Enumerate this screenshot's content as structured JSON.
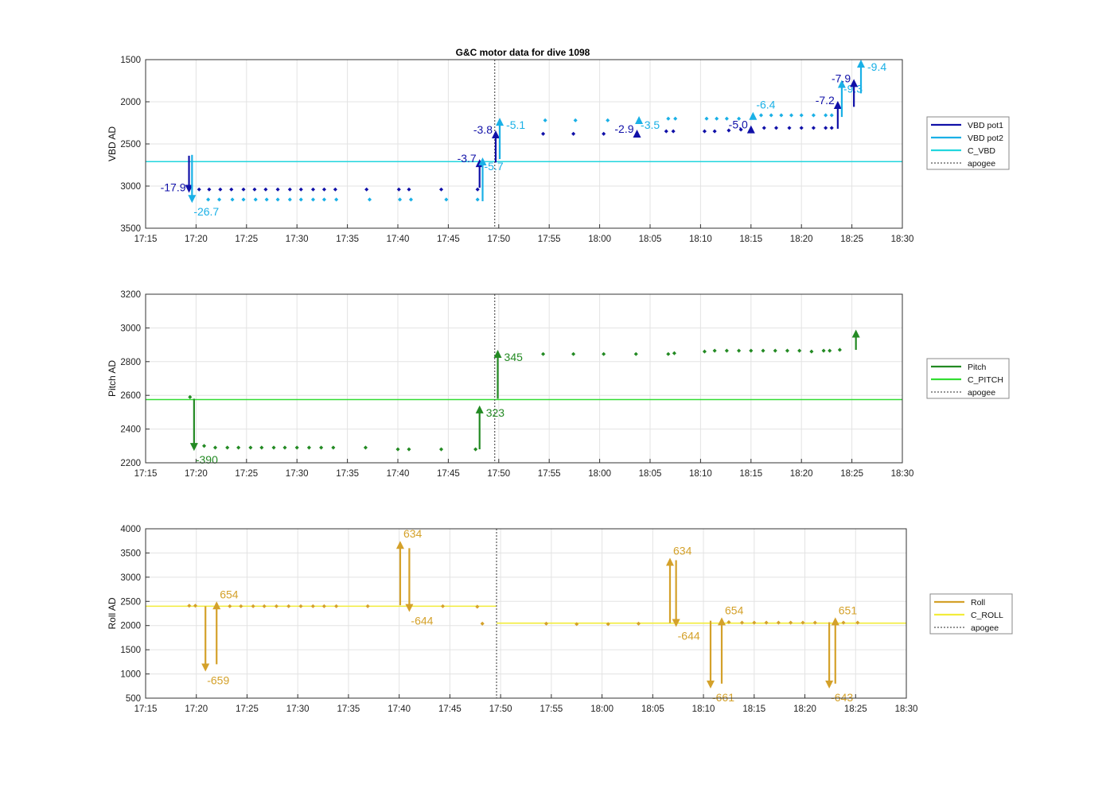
{
  "title": "G&C motor data for dive 1098",
  "colors": {
    "vbd_pot1": "#1010a8",
    "vbd_pot2": "#1ab0e6",
    "c_vbd": "#22d6de",
    "pitch": "#238a23",
    "c_pitch": "#33dd33",
    "roll": "#d4a12a",
    "c_roll": "#f2ec3a",
    "apogee": "#555555",
    "grid": "#e3e3e3"
  },
  "chart_data": [
    {
      "type": "scatter",
      "id": "vbd",
      "ylabel": "VBD AD",
      "xlim": [
        "17:15",
        "18:30"
      ],
      "ylim": [
        1500,
        3500
      ],
      "yreverse": true,
      "yticks": [
        1500,
        2000,
        2500,
        3000,
        3500
      ],
      "xticks": [
        "17:15",
        "17:20",
        "17:25",
        "17:30",
        "17:35",
        "17:40",
        "17:45",
        "17:50",
        "17:55",
        "18:00",
        "18:05",
        "18:10",
        "18:15",
        "18:20",
        "18:25",
        "18:30"
      ],
      "grid": true,
      "legend_position": "right",
      "legend": [
        "VBD pot1",
        "VBD pot2",
        "C_VBD",
        "apogee"
      ],
      "apogee": "17:49.6",
      "ref_lines": [
        {
          "name": "C_VBD",
          "y": 2710,
          "x": [
            "17:15",
            "18:30"
          ]
        }
      ],
      "series": [
        {
          "name": "VBD pot1",
          "x": [
            "17:20.3",
            "17:21.3",
            "17:22.4",
            "17:23.5",
            "17:24.7",
            "17:25.8",
            "17:26.9",
            "17:28.1",
            "17:29.3",
            "17:30.4",
            "17:31.6",
            "17:32.7",
            "17:33.8",
            "17:36.9",
            "17:40.1",
            "17:41.1",
            "17:44.3",
            "17:47.9",
            "17:54.4",
            "17:57.4",
            "18:00.4",
            "18:06.6",
            "18:07.3",
            "18:10.4",
            "18:11.4",
            "18:12.8",
            "18:14.0",
            "18:16.3",
            "18:17.5",
            "18:18.8",
            "18:20.0",
            "18:21.2",
            "18:22.4",
            "18:23.0"
          ],
          "y": [
            3040,
            3040,
            3040,
            3040,
            3040,
            3040,
            3040,
            3040,
            3040,
            3040,
            3040,
            3040,
            3040,
            3040,
            3040,
            3040,
            3040,
            3040,
            2380,
            2380,
            2380,
            2350,
            2350,
            2350,
            2350,
            2340,
            2330,
            2310,
            2310,
            2310,
            2310,
            2310,
            2310,
            2310
          ]
        },
        {
          "name": "VBD pot2",
          "x": [
            "17:21.2",
            "17:22.3",
            "17:23.6",
            "17:24.7",
            "17:25.9",
            "17:27.0",
            "17:28.1",
            "17:29.3",
            "17:30.4",
            "17:31.6",
            "17:32.7",
            "17:33.9",
            "17:37.2",
            "17:40.2",
            "17:41.3",
            "17:44.8",
            "17:47.9",
            "17:54.6",
            "17:57.6",
            "18:00.8",
            "18:06.8",
            "18:07.5",
            "18:10.6",
            "18:11.6",
            "18:12.6",
            "18:13.8",
            "18:16.0",
            "18:17.0",
            "18:18.0",
            "18:19.0",
            "18:20.0",
            "18:21.2",
            "18:22.4",
            "18:23.0"
          ],
          "y": [
            3160,
            3160,
            3160,
            3160,
            3160,
            3160,
            3160,
            3160,
            3160,
            3160,
            3160,
            3160,
            3160,
            3160,
            3160,
            3160,
            3160,
            2220,
            2220,
            2220,
            2200,
            2200,
            2200,
            2200,
            2200,
            2200,
            2160,
            2160,
            2160,
            2160,
            2160,
            2160,
            2160,
            2160
          ]
        }
      ],
      "moves": [
        {
          "series": "VBD pot1",
          "x": "17:19.3",
          "y0": 2640,
          "y1": 3080,
          "label": "-17.9",
          "label_pos": "left"
        },
        {
          "series": "VBD pot2",
          "x": "17:19.6",
          "y0": 2630,
          "y1": 3200,
          "label": "-26.7",
          "label_pos": "below-right"
        },
        {
          "series": "VBD pot1",
          "x": "17:48.1",
          "y0": 3020,
          "y1": 2680,
          "label": "-3.7",
          "label_pos": "left"
        },
        {
          "series": "VBD pot2",
          "x": "17:48.4",
          "y0": 3180,
          "y1": 2660,
          "label": "-5.7",
          "label_pos": "below-right"
        },
        {
          "series": "VBD pot1",
          "x": "17:49.7",
          "y0": 2720,
          "y1": 2340,
          "label": "-3.8",
          "label_pos": "left"
        },
        {
          "series": "VBD pot2",
          "x": "17:50.1",
          "y0": 2680,
          "y1": 2190,
          "label": "-5.1",
          "label_pos": "right"
        },
        {
          "series": "VBD pot1",
          "x": "18:03.7",
          "y0": 2400,
          "y1": 2330,
          "label": "-2.9",
          "label_pos": "left"
        },
        {
          "series": "VBD pot2",
          "x": "18:03.9",
          "y0": 2230,
          "y1": 2170,
          "label": "-3.5",
          "label_pos": "below-right"
        },
        {
          "series": "VBD pot1",
          "x": "18:15.0",
          "y0": 2350,
          "y1": 2280,
          "label": "-5.0",
          "label_pos": "left"
        },
        {
          "series": "VBD pot2",
          "x": "18:15.2",
          "y0": 2180,
          "y1": 2120,
          "label": "-6.4",
          "label_pos": "above-right"
        },
        {
          "series": "VBD pot1",
          "x": "18:23.6",
          "y0": 2320,
          "y1": 1990,
          "label": "-7.2",
          "label_pos": "left"
        },
        {
          "series": "VBD pot2",
          "x": "18:24.0",
          "y0": 2180,
          "y1": 1740,
          "label": "-9.3",
          "label_pos": "below-right"
        },
        {
          "series": "VBD pot1",
          "x": "18:25.2",
          "y0": 2060,
          "y1": 1730,
          "label": "-7.9",
          "label_pos": "left"
        },
        {
          "series": "VBD pot2",
          "x": "18:25.9",
          "y0": 1900,
          "y1": 1500,
          "label": "-9.4",
          "label_pos": "right"
        }
      ]
    },
    {
      "type": "scatter",
      "id": "pitch",
      "ylabel": "Pitch AD",
      "xlim": [
        "17:15",
        "18:30"
      ],
      "ylim": [
        2200,
        3200
      ],
      "yreverse": false,
      "yticks": [
        2200,
        2400,
        2600,
        2800,
        3000,
        3200
      ],
      "xticks": [
        "17:15",
        "17:20",
        "17:25",
        "17:30",
        "17:35",
        "17:40",
        "17:45",
        "17:50",
        "17:55",
        "18:00",
        "18:05",
        "18:10",
        "18:15",
        "18:20",
        "18:25",
        "18:30"
      ],
      "grid": true,
      "legend_position": "right",
      "legend": [
        "Pitch",
        "C_PITCH",
        "apogee"
      ],
      "apogee": "17:49.6",
      "ref_lines": [
        {
          "name": "C_PITCH",
          "y": 2575,
          "x": [
            "17:15",
            "18:30"
          ]
        }
      ],
      "series": [
        {
          "name": "Pitch",
          "x": [
            "17:19.4",
            "17:20.8",
            "17:21.9",
            "17:23.1",
            "17:24.2",
            "17:25.4",
            "17:26.5",
            "17:27.7",
            "17:28.8",
            "17:30.0",
            "17:31.2",
            "17:32.4",
            "17:33.6",
            "17:36.8",
            "17:40.0",
            "17:41.1",
            "17:44.3",
            "17:47.7",
            "17:54.4",
            "17:57.4",
            "18:00.4",
            "18:03.6",
            "18:06.8",
            "18:07.4",
            "18:10.4",
            "18:11.4",
            "18:12.6",
            "18:13.8",
            "18:15.0",
            "18:16.2",
            "18:17.4",
            "18:18.6",
            "18:19.8",
            "18:21.0",
            "18:22.2",
            "18:22.8",
            "18:23.8"
          ],
          "y": [
            2590,
            2300,
            2290,
            2290,
            2290,
            2290,
            2290,
            2290,
            2290,
            2290,
            2290,
            2290,
            2290,
            2290,
            2280,
            2280,
            2280,
            2280,
            2845,
            2845,
            2845,
            2845,
            2845,
            2850,
            2860,
            2865,
            2865,
            2865,
            2865,
            2865,
            2865,
            2865,
            2865,
            2860,
            2865,
            2865,
            2870
          ]
        }
      ],
      "moves": [
        {
          "series": "Pitch",
          "x": "17:19.8",
          "y0": 2580,
          "y1": 2270,
          "label": "-390",
          "label_pos": "below-right"
        },
        {
          "series": "Pitch",
          "x": "17:48.1",
          "y0": 2280,
          "y1": 2540,
          "label": "323",
          "label_pos": "right"
        },
        {
          "series": "Pitch",
          "x": "17:49.9",
          "y0": 2580,
          "y1": 2870,
          "label": "345",
          "label_pos": "right"
        },
        {
          "series": "Pitch",
          "x": "18:25.4",
          "y0": 2870,
          "y1": 2990,
          "label": "",
          "label_pos": "right"
        }
      ]
    },
    {
      "type": "scatter",
      "id": "roll",
      "ylabel": "Roll AD",
      "xlim": [
        "17:15",
        "18:30"
      ],
      "ylim": [
        500,
        4000
      ],
      "yreverse": false,
      "yticks": [
        500,
        1000,
        1500,
        2000,
        2500,
        3000,
        3500,
        4000
      ],
      "xticks": [
        "17:15",
        "17:20",
        "17:25",
        "17:30",
        "17:35",
        "17:40",
        "17:45",
        "17:50",
        "17:55",
        "18:00",
        "18:05",
        "18:10",
        "18:15",
        "18:20",
        "18:25",
        "18:30"
      ],
      "grid": true,
      "legend_position": "right",
      "legend": [
        "Roll",
        "C_ROLL",
        "apogee"
      ],
      "apogee": "17:49.6",
      "ref_lines": [
        {
          "name": "C_ROLL",
          "y": 2400,
          "x": [
            "17:15",
            "17:49.6"
          ]
        },
        {
          "name": "C_ROLL",
          "y": 2050,
          "x": [
            "17:49.6",
            "18:30"
          ]
        }
      ],
      "series": [
        {
          "name": "Roll",
          "x": [
            "17:19.3",
            "17:19.9",
            "17:23.3",
            "17:24.4",
            "17:25.6",
            "17:26.7",
            "17:27.9",
            "17:29.1",
            "17:30.3",
            "17:31.5",
            "17:32.6",
            "17:33.8",
            "17:36.9",
            "17:44.3",
            "17:47.7",
            "17:48.2",
            "17:54.5",
            "17:57.5",
            "18:00.6",
            "18:03.6",
            "18:12.5",
            "18:13.8",
            "18:15.0",
            "18:16.2",
            "18:17.4",
            "18:18.6",
            "18:19.8",
            "18:21.0",
            "18:23.8",
            "18:25.2"
          ],
          "y": [
            2410,
            2410,
            2400,
            2400,
            2400,
            2400,
            2400,
            2400,
            2400,
            2400,
            2400,
            2400,
            2400,
            2400,
            2390,
            2040,
            2040,
            2030,
            2030,
            2040,
            2070,
            2060,
            2060,
            2060,
            2060,
            2060,
            2060,
            2060,
            2060,
            2060
          ]
        }
      ],
      "moves": [
        {
          "series": "Roll",
          "x": "17:20.9",
          "y0": 2400,
          "y1": 1050,
          "label": "-659",
          "label_pos": "below-right"
        },
        {
          "series": "Roll",
          "x": "17:22.0",
          "y0": 1200,
          "y1": 2500,
          "label": "654",
          "label_pos": "above-right"
        },
        {
          "series": "Roll",
          "x": "17:40.1",
          "y0": 2420,
          "y1": 3750,
          "label": "634",
          "label_pos": "above-right"
        },
        {
          "series": "Roll",
          "x": "17:41.0",
          "y0": 3600,
          "y1": 2280,
          "label": "-644",
          "label_pos": "below-right"
        },
        {
          "series": "Roll",
          "x": "18:06.7",
          "y0": 2050,
          "y1": 3400,
          "label": "634",
          "label_pos": "above-right"
        },
        {
          "series": "Roll",
          "x": "18:07.3",
          "y0": 3350,
          "y1": 1970,
          "label": "-644",
          "label_pos": "below-right"
        },
        {
          "series": "Roll",
          "x": "18:10.7",
          "y0": 2100,
          "y1": 700,
          "label": "-661",
          "label_pos": "below-right"
        },
        {
          "series": "Roll",
          "x": "18:11.8",
          "y0": 800,
          "y1": 2170,
          "label": "654",
          "label_pos": "above-right"
        },
        {
          "series": "Roll",
          "x": "18:22.4",
          "y0": 2070,
          "y1": 700,
          "label": "-643",
          "label_pos": "below-right"
        },
        {
          "series": "Roll",
          "x": "18:23.0",
          "y0": 800,
          "y1": 2170,
          "label": "651",
          "label_pos": "above-right"
        }
      ]
    }
  ]
}
